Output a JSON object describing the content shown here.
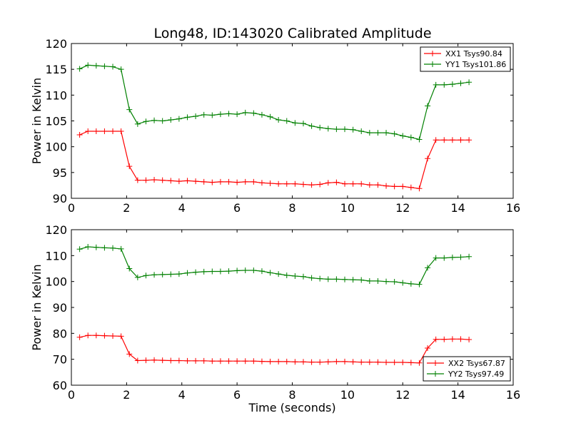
{
  "title": "Long48, ID:143020 Calibrated Amplitude",
  "chart_data": [
    {
      "type": "line",
      "title": "Long48, ID:143020 Calibrated Amplitude",
      "xlabel": "",
      "ylabel": "Power in Kelvin",
      "xlim": [
        0,
        16
      ],
      "ylim": [
        90,
        120
      ],
      "xticks": [
        "0",
        "2",
        "4",
        "6",
        "8",
        "10",
        "12",
        "14",
        "16"
      ],
      "yticks": [
        "90",
        "95",
        "100",
        "105",
        "110",
        "115",
        "120"
      ],
      "grid": false,
      "legend_position": "upper right",
      "x": [
        0.3,
        0.6,
        0.9,
        1.2,
        1.5,
        1.8,
        2.1,
        2.4,
        2.7,
        3.0,
        3.3,
        3.6,
        3.9,
        4.2,
        4.5,
        4.8,
        5.1,
        5.4,
        5.7,
        6.0,
        6.3,
        6.6,
        6.9,
        7.2,
        7.5,
        7.8,
        8.1,
        8.4,
        8.7,
        9.0,
        9.3,
        9.6,
        9.9,
        10.2,
        10.5,
        10.8,
        11.1,
        11.4,
        11.7,
        12.0,
        12.3,
        12.6,
        12.9,
        13.2,
        13.5,
        13.8,
        14.1,
        14.4
      ],
      "series": [
        {
          "name": "XX1 Tsys90.84",
          "color": "#ff0000",
          "values": [
            102.3,
            103.0,
            103.0,
            103.0,
            103.0,
            103.0,
            96.2,
            93.5,
            93.5,
            93.6,
            93.5,
            93.4,
            93.3,
            93.4,
            93.3,
            93.2,
            93.1,
            93.2,
            93.2,
            93.1,
            93.2,
            93.2,
            93.0,
            92.9,
            92.8,
            92.8,
            92.8,
            92.7,
            92.6,
            92.7,
            93.0,
            93.1,
            92.8,
            92.8,
            92.8,
            92.6,
            92.6,
            92.4,
            92.3,
            92.3,
            92.1,
            91.9,
            97.7,
            101.3,
            101.3,
            101.3,
            101.3,
            101.3
          ]
        },
        {
          "name": "YY1 Tsys101.86",
          "color": "#008000",
          "values": [
            115.1,
            115.8,
            115.7,
            115.6,
            115.5,
            115.0,
            107.2,
            104.4,
            104.9,
            105.1,
            105.0,
            105.2,
            105.4,
            105.7,
            105.9,
            106.2,
            106.1,
            106.3,
            106.4,
            106.3,
            106.6,
            106.5,
            106.2,
            105.8,
            105.2,
            105.0,
            104.6,
            104.5,
            104.0,
            103.7,
            103.5,
            103.4,
            103.4,
            103.3,
            103.0,
            102.7,
            102.7,
            102.7,
            102.5,
            102.1,
            101.8,
            101.4,
            107.9,
            112.0,
            112.0,
            112.1,
            112.3,
            112.5
          ]
        }
      ]
    },
    {
      "type": "line",
      "title": "",
      "xlabel": "Time (seconds)",
      "ylabel": "Power in Kelvin",
      "xlim": [
        0,
        16
      ],
      "ylim": [
        60,
        120
      ],
      "xticks": [
        "0",
        "2",
        "4",
        "6",
        "8",
        "10",
        "12",
        "14",
        "16"
      ],
      "yticks": [
        "60",
        "70",
        "80",
        "90",
        "100",
        "110",
        "120"
      ],
      "grid": false,
      "legend_position": "lower right",
      "x": [
        0.3,
        0.6,
        0.9,
        1.2,
        1.5,
        1.8,
        2.1,
        2.4,
        2.7,
        3.0,
        3.3,
        3.6,
        3.9,
        4.2,
        4.5,
        4.8,
        5.1,
        5.4,
        5.7,
        6.0,
        6.3,
        6.6,
        6.9,
        7.2,
        7.5,
        7.8,
        8.1,
        8.4,
        8.7,
        9.0,
        9.3,
        9.6,
        9.9,
        10.2,
        10.5,
        10.8,
        11.1,
        11.4,
        11.7,
        12.0,
        12.3,
        12.6,
        12.9,
        13.2,
        13.5,
        13.8,
        14.1,
        14.4
      ],
      "series": [
        {
          "name": "XX2 Tsys67.87",
          "color": "#ff0000",
          "values": [
            78.5,
            79.2,
            79.2,
            79.1,
            79.0,
            78.9,
            72.0,
            69.5,
            69.6,
            69.7,
            69.6,
            69.5,
            69.5,
            69.4,
            69.4,
            69.4,
            69.3,
            69.3,
            69.3,
            69.3,
            69.3,
            69.3,
            69.2,
            69.1,
            69.1,
            69.1,
            69.0,
            69.0,
            68.9,
            68.9,
            69.0,
            69.1,
            69.1,
            69.0,
            68.9,
            68.9,
            68.9,
            68.8,
            68.8,
            68.8,
            68.7,
            68.6,
            74.3,
            77.7,
            77.7,
            77.8,
            77.8,
            77.6
          ]
        },
        {
          "name": "YY2 Tsys97.49",
          "color": "#008000",
          "values": [
            112.5,
            113.4,
            113.2,
            113.0,
            112.9,
            112.6,
            105.0,
            101.6,
            102.3,
            102.6,
            102.7,
            102.8,
            102.9,
            103.3,
            103.6,
            103.8,
            103.9,
            103.9,
            104.0,
            104.2,
            104.3,
            104.3,
            104.0,
            103.4,
            102.9,
            102.4,
            102.1,
            101.9,
            101.4,
            101.1,
            100.9,
            100.9,
            100.8,
            100.7,
            100.6,
            100.2,
            100.2,
            100.0,
            99.9,
            99.5,
            99.1,
            98.9,
            105.3,
            109.1,
            109.1,
            109.3,
            109.4,
            109.6
          ]
        }
      ]
    }
  ]
}
